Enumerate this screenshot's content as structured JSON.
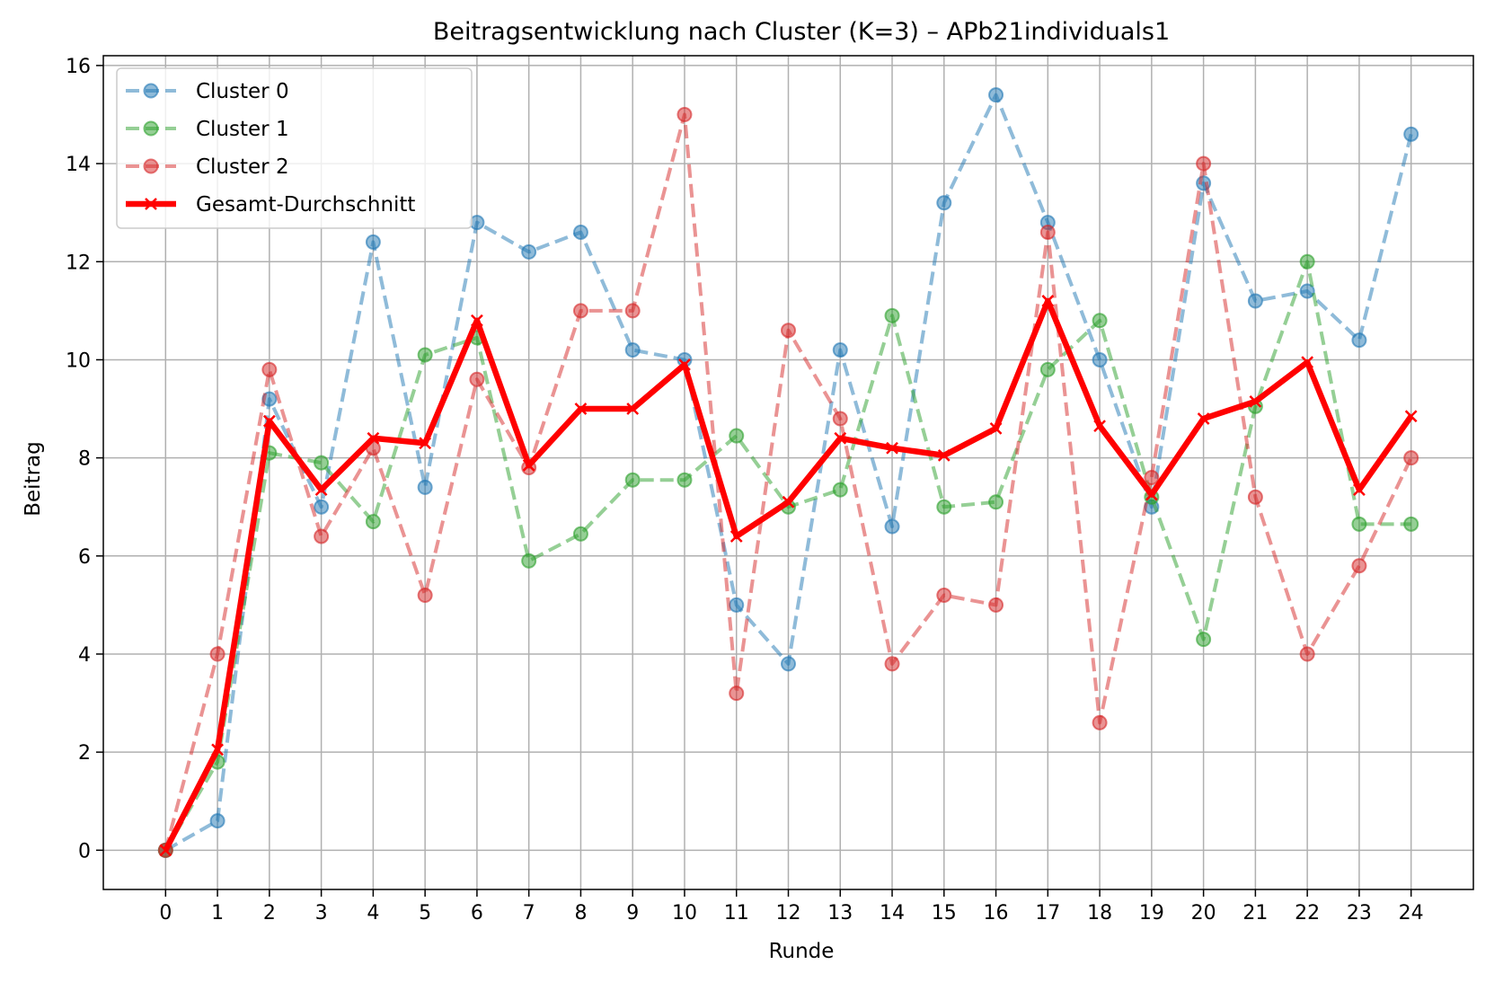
{
  "chart_data": {
    "type": "line",
    "title": "Beitragsentwicklung nach Cluster (K=3) – APb21individuals1",
    "xlabel": "Runde",
    "ylabel": "Beitrag",
    "x": [
      0,
      1,
      2,
      3,
      4,
      5,
      6,
      7,
      8,
      9,
      10,
      11,
      12,
      13,
      14,
      15,
      16,
      17,
      18,
      19,
      20,
      21,
      22,
      23,
      24
    ],
    "xlim": [
      -1.2,
      25.2
    ],
    "ylim": [
      -0.8,
      16.2
    ],
    "yticks": [
      0,
      2,
      4,
      6,
      8,
      10,
      12,
      14,
      16
    ],
    "grid": true,
    "legend_position": "top-left",
    "series": [
      {
        "name": "Cluster 0",
        "color": "#1f77b4",
        "style": "dashed",
        "marker": "circle",
        "values": [
          0,
          0.6,
          9.2,
          7.0,
          12.4,
          7.4,
          12.8,
          12.2,
          12.6,
          10.2,
          10.0,
          5.0,
          3.8,
          10.2,
          6.6,
          13.2,
          15.4,
          12.8,
          10.0,
          7.0,
          13.6,
          11.2,
          11.4,
          10.4,
          14.6
        ]
      },
      {
        "name": "Cluster 1",
        "color": "#2ca02c",
        "style": "dashed",
        "marker": "circle",
        "values": [
          0,
          1.8,
          8.1,
          7.9,
          6.7,
          10.1,
          10.45,
          5.9,
          6.45,
          7.55,
          7.55,
          8.45,
          7.0,
          7.35,
          10.9,
          7.0,
          7.1,
          9.8,
          10.8,
          7.2,
          4.3,
          9.05,
          12.0,
          6.65,
          6.65
        ]
      },
      {
        "name": "Cluster 2",
        "color": "#d62728",
        "style": "dashed",
        "marker": "circle",
        "values": [
          0,
          4.0,
          9.8,
          6.4,
          8.2,
          5.2,
          9.6,
          7.8,
          11.0,
          11.0,
          15.0,
          3.2,
          10.6,
          8.8,
          3.8,
          5.2,
          5.0,
          12.6,
          2.6,
          7.6,
          14.0,
          7.2,
          4.0,
          5.8,
          8.0
        ]
      },
      {
        "name": "Gesamt-Durchschnitt",
        "color": "#ff0000",
        "style": "solid",
        "marker": "x",
        "values": [
          0,
          2.05,
          8.75,
          7.35,
          8.4,
          8.3,
          10.8,
          7.85,
          9.0,
          9.0,
          9.9,
          6.4,
          7.1,
          8.4,
          8.2,
          8.05,
          8.6,
          11.2,
          8.65,
          7.25,
          8.8,
          9.15,
          9.95,
          7.35,
          8.85
        ]
      }
    ]
  }
}
